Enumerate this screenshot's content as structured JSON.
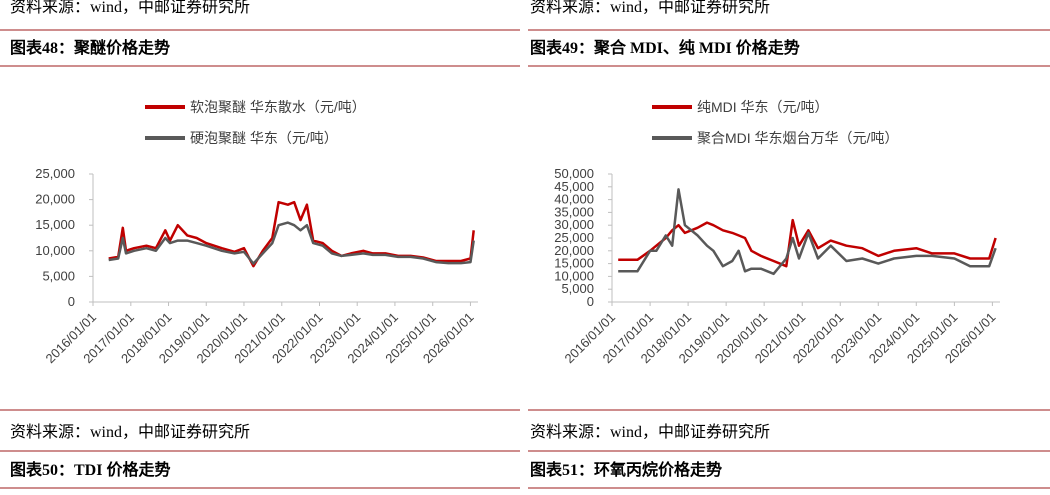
{
  "top_sources": [
    "资料来源：wind，中邮证券研究所",
    "资料来源：wind，中邮证券研究所"
  ],
  "headers": [
    "图表48：聚醚价格走势",
    "图表49：聚合 MDI、纯 MDI 价格走势",
    "图表50：TDI 价格走势",
    "图表51：环氧丙烷价格走势"
  ],
  "sources": [
    "资料来源：wind，中邮证券研究所",
    "资料来源：wind，中邮证券研究所"
  ],
  "chart_data": [
    {
      "type": "line",
      "xlim": [
        "2016/01/01",
        "2026/03/15"
      ],
      "xticks": [
        "2016/01/01",
        "2017/01/01",
        "2018/01/01",
        "2019/01/01",
        "2020/01/01",
        "2021/01/01",
        "2022/01/01",
        "2023/01/01",
        "2024/01/01",
        "2025/01/01",
        "2026/01/01"
      ],
      "ylim": [
        0,
        25000
      ],
      "yticks": [
        0,
        {
          "value": 5000,
          "label": "5,000"
        },
        {
          "value": 10000,
          "label": "10,000"
        },
        {
          "value": 15000,
          "label": "15,000"
        },
        {
          "value": 20000,
          "label": "20,000"
        },
        {
          "value": 25000,
          "label": "25,000"
        }
      ],
      "x": [
        "2016/06/01",
        "2016/09/01",
        "2016/10/15",
        "2016/11/15",
        "2017/02/01",
        "2017/06/01",
        "2017/09/01",
        "2017/12/01",
        "2018/01/15",
        "2018/04/01",
        "2018/07/01",
        "2018/10/01",
        "2019/01/01",
        "2019/06/01",
        "2019/10/01",
        "2020/01/01",
        "2020/04/01",
        "2020/07/01",
        "2020/10/01",
        "2020/12/01",
        "2021/03/01",
        "2021/05/01",
        "2021/07/01",
        "2021/09/01",
        "2021/11/01",
        "2022/02/01",
        "2022/05/01",
        "2022/08/01",
        "2022/11/01",
        "2023/03/01",
        "2023/06/01",
        "2023/10/01",
        "2024/02/01",
        "2024/06/01",
        "2024/10/01",
        "2025/02/01",
        "2025/06/01",
        "2025/10/01",
        "2026/01/01",
        "2026/02/01"
      ],
      "series": [
        {
          "name": "软泡聚醚 华东散水（元/吨）",
          "color": "#c00000",
          "values": [
            8500,
            8800,
            14500,
            10000,
            10500,
            11000,
            10500,
            14000,
            12000,
            15000,
            13000,
            12500,
            11500,
            10500,
            9800,
            10500,
            7000,
            10000,
            12500,
            19500,
            19000,
            19500,
            16000,
            19000,
            12000,
            11500,
            10000,
            9000,
            9500,
            10000,
            9500,
            9500,
            9000,
            9000,
            8700,
            8000,
            8000,
            8000,
            8500,
            14000
          ]
        },
        {
          "name": "硬泡聚醚 华东（元/吨）",
          "color": "#595959",
          "values": [
            8200,
            8500,
            12500,
            9500,
            10000,
            10500,
            10000,
            12500,
            11500,
            12000,
            12000,
            11500,
            11000,
            10000,
            9500,
            9800,
            7500,
            9500,
            11500,
            15000,
            15500,
            15000,
            14000,
            15000,
            11500,
            11000,
            9500,
            9000,
            9200,
            9500,
            9200,
            9200,
            8800,
            8800,
            8500,
            7800,
            7600,
            7600,
            7800,
            12000
          ]
        }
      ]
    },
    {
      "type": "line",
      "xlim": [
        "2016/01/01",
        "2026/03/15"
      ],
      "xticks": [
        "2016/01/01",
        "2017/01/01",
        "2018/01/01",
        "2019/01/01",
        "2020/01/01",
        "2021/01/01",
        "2022/01/01",
        "2023/01/01",
        "2024/01/01",
        "2025/01/01",
        "2026/01/01"
      ],
      "ylim": [
        0,
        50000
      ],
      "yticks": [
        0,
        {
          "value": 5000,
          "label": "5,000"
        },
        {
          "value": 10000,
          "label": "10,000"
        },
        {
          "value": 15000,
          "label": "15,000"
        },
        {
          "value": 20000,
          "label": "20,000"
        },
        {
          "value": 25000,
          "label": "25,000"
        },
        {
          "value": 30000,
          "label": "30,000"
        },
        {
          "value": 35000,
          "label": "35,000"
        },
        {
          "value": 40000,
          "label": "40,000"
        },
        {
          "value": 45000,
          "label": "45,000"
        },
        {
          "value": 50000,
          "label": "50,000"
        }
      ],
      "x": [
        "2016/03/01",
        "2016/09/01",
        "2017/01/01",
        "2017/03/01",
        "2017/06/01",
        "2017/08/01",
        "2017/10/01",
        "2017/12/01",
        "2018/04/01",
        "2018/07/01",
        "2018/09/01",
        "2018/12/01",
        "2019/03/01",
        "2019/05/01",
        "2019/07/01",
        "2019/09/01",
        "2019/12/01",
        "2020/04/01",
        "2020/08/01",
        "2020/10/01",
        "2020/12/01",
        "2021/03/01",
        "2021/06/01",
        "2021/10/01",
        "2022/03/01",
        "2022/08/01",
        "2023/01/01",
        "2023/06/01",
        "2024/01/01",
        "2024/06/01",
        "2025/01/01",
        "2025/06/01",
        "2025/12/01",
        "2026/02/01"
      ],
      "series": [
        {
          "name": "纯MDI 华东（元/吨）",
          "color": "#c00000",
          "values": [
            16500,
            16500,
            20000,
            22000,
            25000,
            28000,
            30000,
            27000,
            29000,
            31000,
            30000,
            28000,
            27000,
            26000,
            25000,
            20000,
            18000,
            16000,
            14000,
            32000,
            22000,
            28000,
            21000,
            24000,
            22000,
            21000,
            18000,
            20000,
            21000,
            19000,
            19000,
            17000,
            17000,
            25000
          ]
        },
        {
          "name": "聚合MDI 华东烟台万华（元/吨）",
          "color": "#595959",
          "values": [
            12000,
            12000,
            20000,
            20000,
            26000,
            22000,
            44000,
            30000,
            26000,
            22000,
            20000,
            14000,
            16000,
            20000,
            12000,
            13000,
            13000,
            11000,
            17000,
            25000,
            17000,
            27000,
            17000,
            22000,
            16000,
            17000,
            15000,
            17000,
            18000,
            18000,
            17000,
            14000,
            14000,
            21000
          ]
        }
      ]
    }
  ]
}
